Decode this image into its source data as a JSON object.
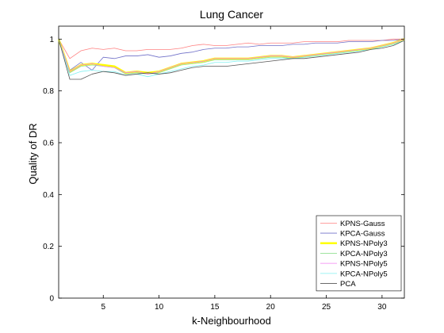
{
  "chart_data": {
    "type": "line",
    "title": "Lung Cancer",
    "xlabel": "k-Neighbourhood",
    "ylabel": "Quality of DR",
    "xlim": [
      1,
      32
    ],
    "ylim": [
      0,
      1.05
    ],
    "xticks": [
      5,
      10,
      15,
      20,
      25,
      30
    ],
    "yticks": [
      0,
      0.2,
      0.4,
      0.6,
      0.8,
      1
    ],
    "ytick_labels": [
      "0",
      "0.2",
      "0.4",
      "0.6",
      "0.8",
      "1"
    ],
    "grid": false,
    "legend_position": "bottom-right",
    "x": [
      1,
      2,
      3,
      4,
      5,
      6,
      7,
      8,
      9,
      10,
      11,
      12,
      13,
      14,
      15,
      16,
      17,
      18,
      19,
      20,
      21,
      22,
      23,
      24,
      25,
      26,
      27,
      28,
      29,
      30,
      31,
      32
    ],
    "series": [
      {
        "name": "KPNS-Gauss",
        "color": "#ff8080",
        "width": 0.8,
        "values": [
          1,
          0.925,
          0.955,
          0.965,
          0.96,
          0.965,
          0.955,
          0.955,
          0.96,
          0.96,
          0.96,
          0.965,
          0.975,
          0.98,
          0.975,
          0.975,
          0.98,
          0.985,
          0.98,
          0.985,
          0.985,
          0.985,
          0.99,
          0.99,
          0.99,
          0.99,
          0.995,
          0.995,
          0.995,
          0.995,
          1,
          1
        ]
      },
      {
        "name": "KPCA-Gauss",
        "color": "#7070c8",
        "width": 0.8,
        "values": [
          1,
          0.88,
          0.91,
          0.88,
          0.93,
          0.925,
          0.935,
          0.935,
          0.94,
          0.93,
          0.935,
          0.945,
          0.95,
          0.96,
          0.965,
          0.965,
          0.97,
          0.97,
          0.975,
          0.975,
          0.975,
          0.98,
          0.98,
          0.985,
          0.985,
          0.985,
          0.99,
          0.99,
          0.99,
          0.995,
          0.995,
          1
        ]
      },
      {
        "name": "KPNS-NPoly3",
        "color": "#ffff00",
        "width": 2.4,
        "values": [
          1,
          0.875,
          0.9,
          0.905,
          0.9,
          0.895,
          0.87,
          0.875,
          0.87,
          0.875,
          0.89,
          0.905,
          0.91,
          0.915,
          0.925,
          0.925,
          0.925,
          0.925,
          0.93,
          0.935,
          0.935,
          0.93,
          0.935,
          0.94,
          0.945,
          0.95,
          0.955,
          0.96,
          0.965,
          0.975,
          0.985,
          1
        ]
      },
      {
        "name": "KPCA-NPoly3",
        "color": "#90e090",
        "width": 0.8,
        "values": [
          1,
          0.87,
          0.895,
          0.9,
          0.895,
          0.89,
          0.865,
          0.87,
          0.865,
          0.87,
          0.885,
          0.9,
          0.905,
          0.91,
          0.92,
          0.92,
          0.92,
          0.92,
          0.925,
          0.93,
          0.93,
          0.925,
          0.93,
          0.935,
          0.94,
          0.945,
          0.95,
          0.955,
          0.96,
          0.97,
          0.98,
          0.995
        ]
      },
      {
        "name": "KPNS-NPoly5",
        "color": "#f080f0",
        "width": 0.8,
        "values": [
          1,
          0.875,
          0.9,
          0.905,
          0.895,
          0.89,
          0.87,
          0.875,
          0.865,
          0.875,
          0.89,
          0.905,
          0.91,
          0.915,
          0.925,
          0.925,
          0.925,
          0.925,
          0.93,
          0.935,
          0.935,
          0.93,
          0.935,
          0.94,
          0.945,
          0.95,
          0.955,
          0.96,
          0.965,
          0.975,
          0.985,
          1
        ]
      },
      {
        "name": "KPCA-NPoly5",
        "color": "#80f0f0",
        "width": 0.8,
        "values": [
          1,
          0.86,
          0.875,
          0.88,
          0.875,
          0.875,
          0.86,
          0.865,
          0.855,
          0.865,
          0.875,
          0.885,
          0.895,
          0.9,
          0.91,
          0.91,
          0.915,
          0.915,
          0.92,
          0.925,
          0.925,
          0.925,
          0.93,
          0.935,
          0.94,
          0.945,
          0.95,
          0.955,
          0.96,
          0.97,
          0.98,
          0.995
        ]
      },
      {
        "name": "PCA",
        "color": "#555555",
        "width": 0.8,
        "values": [
          1,
          0.845,
          0.845,
          0.865,
          0.875,
          0.87,
          0.86,
          0.865,
          0.87,
          0.865,
          0.87,
          0.88,
          0.89,
          0.895,
          0.895,
          0.895,
          0.9,
          0.905,
          0.91,
          0.915,
          0.92,
          0.925,
          0.925,
          0.93,
          0.935,
          0.94,
          0.945,
          0.95,
          0.96,
          0.965,
          0.975,
          0.995
        ]
      }
    ]
  }
}
